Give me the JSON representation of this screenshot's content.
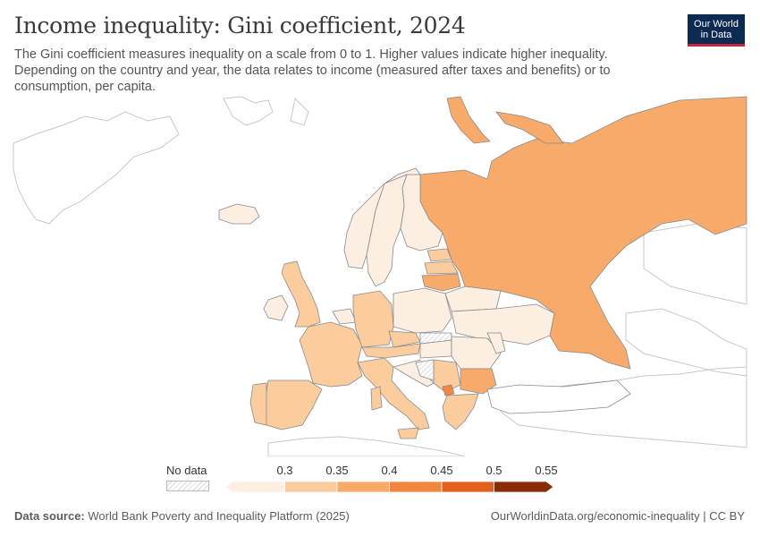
{
  "header": {
    "title": "Income inequality: Gini coefficient, 2024",
    "subtitle": "The Gini coefficient measures inequality on a scale from 0 to 1. Higher values indicate higher inequality. Depending on the country and year, the data relates to income (measured after taxes and benefits) or to consumption, per capita."
  },
  "logo": {
    "line1": "Our World",
    "line2": "in Data"
  },
  "legend": {
    "no_data_label": "No data",
    "ticks": [
      "0.3",
      "0.35",
      "0.4",
      "0.45",
      "0.5",
      "0.55"
    ],
    "bins": [
      {
        "color": "#fdeee2"
      },
      {
        "color": "#fbcd9e"
      },
      {
        "color": "#f8aa6b"
      },
      {
        "color": "#f2853f"
      },
      {
        "color": "#e1601e"
      },
      {
        "color": "#c64a0e"
      },
      {
        "color": "#8a2b08"
      }
    ]
  },
  "map": {
    "regions": [
      {
        "name": "Russia",
        "value_bin": 2
      },
      {
        "name": "Finland",
        "value_bin": 0
      },
      {
        "name": "Sweden",
        "value_bin": 0
      },
      {
        "name": "Norway",
        "value_bin": 0
      },
      {
        "name": "Iceland",
        "value_bin": 0
      },
      {
        "name": "Estonia",
        "value_bin": 1
      },
      {
        "name": "Latvia",
        "value_bin": 1
      },
      {
        "name": "Lithuania",
        "value_bin": 2
      },
      {
        "name": "United Kingdom",
        "value_bin": 1
      },
      {
        "name": "Ireland",
        "value_bin": 0
      },
      {
        "name": "France",
        "value_bin": 1
      },
      {
        "name": "Spain",
        "value_bin": 1
      },
      {
        "name": "Portugal",
        "value_bin": 1
      },
      {
        "name": "Germany",
        "value_bin": 1
      },
      {
        "name": "Poland",
        "value_bin": 0
      },
      {
        "name": "Belarus",
        "value_bin": 0
      },
      {
        "name": "Ukraine",
        "value_bin": 0
      },
      {
        "name": "Italy",
        "value_bin": 1
      },
      {
        "name": "Romania",
        "value_bin": 0
      },
      {
        "name": "Hungary",
        "value_bin": 0
      },
      {
        "name": "Serbia",
        "value_bin": 1
      },
      {
        "name": "Bulgaria",
        "value_bin": 2
      },
      {
        "name": "Greece",
        "value_bin": 1
      },
      {
        "name": "Turkey",
        "value_bin": null
      }
    ]
  },
  "footer": {
    "source_label": "Data source:",
    "source_text": "World Bank Poverty and Inequality Platform (2025)",
    "link_text": "OurWorldinData.org/economic-inequality | CC BY"
  }
}
